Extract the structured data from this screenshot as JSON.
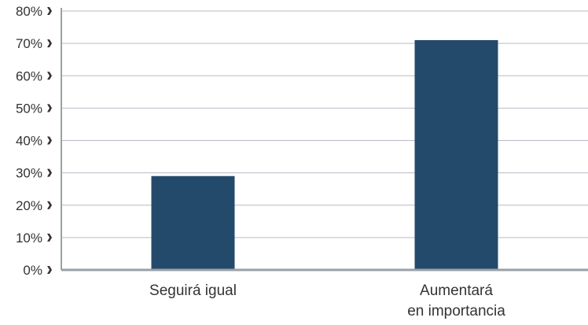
{
  "chart_data": {
    "type": "bar",
    "categories": [
      [
        "Seguirá igual"
      ],
      [
        "Aumentará",
        "en importancia"
      ]
    ],
    "values": [
      29,
      71
    ],
    "ylim": [
      0,
      80
    ],
    "ytick_labels": [
      "0%",
      "10%",
      "20%",
      "30%",
      "40%",
      "50%",
      "60%",
      "70%",
      "80%"
    ],
    "ytick_values": [
      0,
      10,
      20,
      30,
      40,
      50,
      60,
      70,
      80
    ],
    "grid": true,
    "legend": "none",
    "colors": {
      "bar": "#244a6b",
      "grid": "#b8bcc4",
      "axis": "#9aa0a8",
      "text": "#333333"
    }
  }
}
